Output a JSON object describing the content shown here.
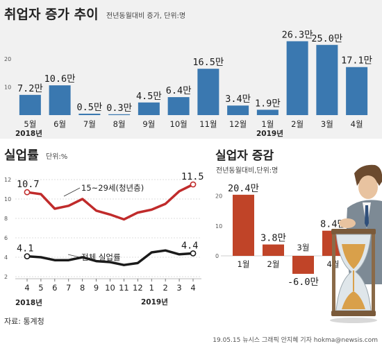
{
  "chart_data": [
    {
      "type": "bar",
      "title": "취업자 증가 추이",
      "subtitle": "전년동월대비 증가, 단위:명",
      "categories": [
        "5월",
        "6월",
        "7월",
        "8월",
        "9월",
        "10월",
        "11월",
        "12월",
        "1월",
        "2월",
        "3월",
        "4월"
      ],
      "values": [
        7.2,
        10.6,
        0.5,
        0.3,
        4.5,
        6.4,
        16.5,
        3.4,
        1.9,
        26.3,
        25.0,
        17.1
      ],
      "value_labels": [
        "7.2만",
        "10.6만",
        "0.5만",
        "0.3만",
        "4.5만",
        "6.4만",
        "16.5만",
        "3.4만",
        "1.9만",
        "26.3만",
        "25.0만",
        "17.1만"
      ],
      "year_labels": [
        "2018년",
        "2019년"
      ],
      "y_ticks": [
        "20",
        "10"
      ],
      "ylim": [
        0,
        28
      ],
      "color": "#3a78b0",
      "grid": false
    },
    {
      "type": "line",
      "title": "실업률",
      "subtitle": "단위:%",
      "x": [
        "4",
        "5",
        "6",
        "7",
        "8",
        "9",
        "10",
        "11",
        "12",
        "1",
        "2",
        "3",
        "4"
      ],
      "year_labels": [
        "2018년",
        "2019년"
      ],
      "y_ticks": [
        "12",
        "10",
        "8",
        "6",
        "4",
        "2"
      ],
      "ylim": [
        2,
        12
      ],
      "series": [
        {
          "name": "15~29세(청년층)",
          "values": [
            10.7,
            10.5,
            9.0,
            9.3,
            10.0,
            8.8,
            8.4,
            7.9,
            8.6,
            8.9,
            9.5,
            10.8,
            11.5
          ],
          "color": "#c02b2b",
          "start_label": "10.7",
          "end_label": "11.5"
        },
        {
          "name": "전체 실업률",
          "values": [
            4.1,
            4.0,
            3.7,
            3.7,
            4.0,
            3.6,
            3.5,
            3.2,
            3.4,
            4.5,
            4.7,
            4.3,
            4.4
          ],
          "color": "#1a1a1a",
          "start_label": "4.1",
          "end_label": "4.4"
        }
      ],
      "grid": true
    },
    {
      "type": "bar",
      "title": "실업자 증감",
      "subtitle": "전년동월대비,단위:명",
      "categories": [
        "1월",
        "2월",
        "3월",
        "4월"
      ],
      "values": [
        20.4,
        3.8,
        -6.0,
        8.4
      ],
      "value_labels": [
        "20.4만",
        "3.8만",
        "-6.0만",
        "8.4만"
      ],
      "y_ticks": [
        "20",
        "10",
        "0"
      ],
      "ylim": [
        -8,
        22
      ],
      "color": "#c04428",
      "grid": false
    }
  ],
  "source": "자료: 통계청",
  "credit": "19.05.15 뉴시스 그래픽 안지혜 기자 hokma@newsis.com"
}
